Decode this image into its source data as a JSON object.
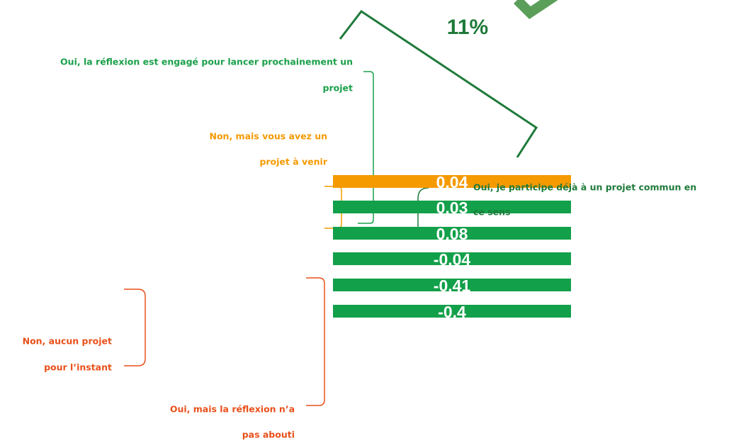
{
  "headline": "11%",
  "bars": [
    {
      "label": "0.04",
      "color": "#f59a00"
    },
    {
      "label": "0.03",
      "color": "#12a04a"
    },
    {
      "label": "0.08",
      "color": "#12a04a"
    },
    {
      "label": "-0.04",
      "color": "#12a04a"
    },
    {
      "label": "-0.41",
      "color": "#12a04a"
    },
    {
      "label": "-0.4",
      "color": "#12a04a"
    }
  ],
  "annotations": [
    {
      "lines": [
        "Oui, la réflexion est engagé pour lancer prochainement un",
        "projet"
      ],
      "color": "#1aa04a"
    },
    {
      "lines": [
        "Non, mais vous avez un",
        "projet à venir"
      ],
      "color": "#f59a00"
    },
    {
      "lines": [
        "Oui, je participe déjà à un projet commun en",
        "ce sens"
      ],
      "color": "#1e7a3a"
    },
    {
      "lines": [
        "Non, aucun projet",
        "pour l’instant"
      ],
      "color": "#e8501a"
    },
    {
      "lines": [
        "Oui, mais la réflexion n’a",
        "pas abouti"
      ],
      "color": "#e8501a"
    }
  ]
}
